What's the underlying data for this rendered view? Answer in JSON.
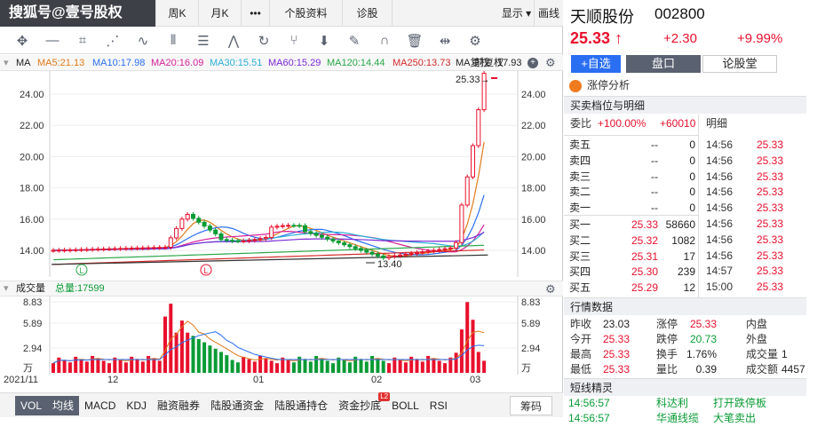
{
  "watermark": "搜狐号@壹号股权",
  "tabs": [
    {
      "label": "周K"
    },
    {
      "label": "月K"
    },
    {
      "label": "•••"
    },
    {
      "label": "个股资料"
    },
    {
      "label": "诊股"
    },
    {
      "label": "显示 ▾"
    },
    {
      "label": "画线"
    }
  ],
  "toolbar_icons": [
    "move-icon",
    "line-icon",
    "crop-icon",
    "fan-icon",
    "wave-icon",
    "bars-icon",
    "channel-icon",
    "zigzag-icon",
    "cycle-icon",
    "pitchfork-icon",
    "arrow-down-icon",
    "eraser-icon",
    "magnet-icon",
    "trash-icon",
    "expand-icon",
    "settings-icon"
  ],
  "ma": {
    "label": "MA",
    "items": [
      {
        "text": "MA5:21.13",
        "color": "#e07b1a"
      },
      {
        "text": "MA10:17.98",
        "color": "#2a6ef2"
      },
      {
        "text": "MA20:16.09",
        "color": "#d6229a"
      },
      {
        "text": "MA30:15.51",
        "color": "#2ab0d6"
      },
      {
        "text": "MA60:15.29",
        "color": "#7b2ad6"
      },
      {
        "text": "MA120:14.44",
        "color": "#2aa84a"
      },
      {
        "text": "MA250:13.73",
        "color": "#d62a2a"
      }
    ],
    "overlap": "MA复权",
    "overlap2": "前复权",
    "overlap3": "17.93"
  },
  "price_axis": {
    "left": [
      "24.00",
      "22.00",
      "20.00",
      "18.00",
      "16.00",
      "14.00"
    ],
    "right": [
      "24.00",
      "22.00",
      "20.00",
      "18.00",
      "16.00",
      "14.00"
    ]
  },
  "price_marker": "25.33→",
  "low_marker": "13.40",
  "vol": {
    "label": "成交量",
    "total": "总量:17599",
    "axis_left": [
      "8.83",
      "5.89",
      "2.94",
      "万"
    ],
    "axis_right": [
      "8.83",
      "5.89",
      "2.94",
      "万"
    ]
  },
  "dates": [
    "2021/11",
    "12",
    "01",
    "02",
    "03"
  ],
  "indicators": [
    "VOL",
    "均线",
    "MACD",
    "KDJ",
    "融资融券",
    "陆股通资金",
    "陆股通持仓",
    "资金抄底",
    "BOLL",
    "RSI"
  ],
  "indicator_badge": "L2",
  "chou": "筹码",
  "stock": {
    "name": "天顺股份",
    "code": "002800",
    "price": "25.33",
    "arrow": "↑",
    "change": "+2.30",
    "pct": "+9.99%"
  },
  "buttons": {
    "add": "+自选",
    "pankou": "盘口",
    "luntang": "论股堂"
  },
  "zhangting": "涨停分析",
  "section_book": "买卖档位与明细",
  "weibi": {
    "label": "委比",
    "pct": "+100.00%",
    "diff": "+60010",
    "detail": "明细"
  },
  "sells": [
    {
      "label": "卖五",
      "price": "--",
      "vol": "0"
    },
    {
      "label": "卖四",
      "price": "--",
      "vol": "0"
    },
    {
      "label": "卖三",
      "price": "--",
      "vol": "0"
    },
    {
      "label": "卖二",
      "price": "--",
      "vol": "0"
    },
    {
      "label": "卖一",
      "price": "--",
      "vol": "0"
    }
  ],
  "buys": [
    {
      "label": "买一",
      "price": "25.33",
      "vol": "58660"
    },
    {
      "label": "买二",
      "price": "25.32",
      "vol": "1082"
    },
    {
      "label": "买三",
      "price": "25.31",
      "vol": "17"
    },
    {
      "label": "买四",
      "price": "25.30",
      "vol": "239"
    },
    {
      "label": "买五",
      "price": "25.29",
      "vol": "12"
    }
  ],
  "ticks": [
    {
      "time": "14:56",
      "price": "25.33"
    },
    {
      "time": "14:56",
      "price": "25.33"
    },
    {
      "time": "14:56",
      "price": "25.33"
    },
    {
      "time": "14:56",
      "price": "25.33"
    },
    {
      "time": "14:56",
      "price": "25.33"
    },
    {
      "time": "14:56",
      "price": "25.33"
    },
    {
      "time": "14:56",
      "price": "25.33"
    },
    {
      "time": "14:56",
      "price": "25.33"
    },
    {
      "time": "14:57",
      "price": "25.33"
    },
    {
      "time": "15:00",
      "price": "25.33"
    }
  ],
  "section_quote": "行情数据",
  "quote": [
    [
      {
        "k": "昨收",
        "v": "23.03",
        "c": "#222"
      },
      {
        "k": "涨停",
        "v": "25.33",
        "c": "#e8112d"
      },
      {
        "k": "内盘",
        "v": ""
      }
    ],
    [
      {
        "k": "今开",
        "v": "25.33",
        "c": "#e8112d"
      },
      {
        "k": "跌停",
        "v": "20.73",
        "c": "#0a9b35"
      },
      {
        "k": "外盘",
        "v": ""
      }
    ],
    [
      {
        "k": "最高",
        "v": "25.33",
        "c": "#e8112d"
      },
      {
        "k": "换手",
        "v": "1.76%",
        "c": "#222"
      },
      {
        "k": "成交量",
        "v": "1"
      }
    ],
    [
      {
        "k": "最低",
        "v": "25.33",
        "c": "#e8112d"
      },
      {
        "k": "量比",
        "v": "0.39",
        "c": "#222"
      },
      {
        "k": "成交额",
        "v": "4457"
      }
    ]
  ],
  "section_elf": "短线精灵",
  "elf": [
    {
      "time": "14:56:57",
      "name": "科达利",
      "event": "打开跌停板"
    },
    {
      "time": "14:56:57",
      "name": "华通线缆",
      "event": "大笔卖出"
    }
  ]
}
